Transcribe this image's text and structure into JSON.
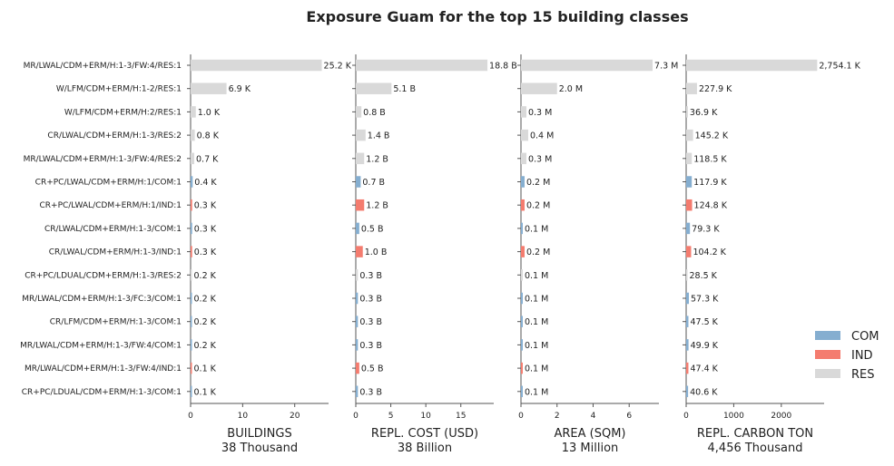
{
  "chart_data": {
    "type": "bar",
    "orientation": "horizontal",
    "title": "Exposure Guam for the top 15 building classes",
    "categories": [
      "MR/LWAL/CDM+ERM/H:1-3/FW:4/RES:1",
      "W/LFM/CDM+ERM/H:1-2/RES:1",
      "W/LFM/CDM+ERM/H:2/RES:1",
      "CR/LWAL/CDM+ERM/H:1-3/RES:2",
      "MR/LWAL/CDM+ERM/H:1-3/FW:4/RES:2",
      "CR+PC/LWAL/CDM+ERM/H:1/COM:1",
      "CR+PC/LWAL/CDM+ERM/H:1/IND:1",
      "CR/LWAL/CDM+ERM/H:1-3/COM:1",
      "CR/LWAL/CDM+ERM/H:1-3/IND:1",
      "CR+PC/LDUAL/CDM+ERM/H:1-3/RES:2",
      "MR/LWAL/CDM+ERM/H:1-3/FC:3/COM:1",
      "CR/LFM/CDM+ERM/H:1-3/COM:1",
      "MR/LWAL/CDM+ERM/H:1-3/FW:4/COM:1",
      "MR/LWAL/CDM+ERM/H:1-3/FW:4/IND:1",
      "CR+PC/LDUAL/CDM+ERM/H:1-3/COM:1"
    ],
    "occupancy": [
      "RES",
      "RES",
      "RES",
      "RES",
      "RES",
      "COM",
      "IND",
      "COM",
      "IND",
      "RES",
      "COM",
      "COM",
      "COM",
      "IND",
      "COM"
    ],
    "colors": {
      "COM": "#85aed0",
      "IND": "#f47c6f",
      "RES": "#d9d9d9"
    },
    "legend": {
      "position": "lower-right",
      "entries": [
        "COM",
        "IND",
        "RES"
      ]
    },
    "panels": [
      {
        "xlabel": "BUILDINGS",
        "subtitle": "38 Thousand",
        "xlim": [
          0,
          26.5
        ],
        "xticks": [
          0,
          10,
          20
        ],
        "xtick_labels": [
          "0",
          "10",
          "20"
        ],
        "values": [
          25.2,
          6.9,
          1.0,
          0.8,
          0.7,
          0.4,
          0.3,
          0.3,
          0.3,
          0.2,
          0.2,
          0.2,
          0.2,
          0.1,
          0.1
        ],
        "value_labels": [
          "25.2 K",
          "6.9 K",
          "1.0 K",
          "0.8 K",
          "0.7 K",
          "0.4 K",
          "0.3 K",
          "0.3 K",
          "0.3 K",
          "0.2 K",
          "0.2 K",
          "0.2 K",
          "0.2 K",
          "0.1 K",
          "0.1 K"
        ]
      },
      {
        "xlabel": "REPL. COST (USD)",
        "subtitle": "38 Billion",
        "xlim": [
          0,
          19.7
        ],
        "xticks": [
          0,
          5,
          10,
          15
        ],
        "xtick_labels": [
          "0",
          "5",
          "10",
          "15"
        ],
        "values": [
          18.8,
          5.1,
          0.8,
          1.4,
          1.2,
          0.7,
          1.2,
          0.5,
          1.0,
          0.3,
          0.3,
          0.3,
          0.3,
          0.5,
          0.3
        ],
        "value_labels": [
          "18.8 B",
          "5.1 B",
          "0.8 B",
          "1.4 B",
          "1.2 B",
          "0.7 B",
          "1.2 B",
          "0.5 B",
          "1.0 B",
          "0.3 B",
          "0.3 B",
          "0.3 B",
          "0.3 B",
          "0.5 B",
          "0.3 B"
        ]
      },
      {
        "xlabel": "AREA (SQM)",
        "subtitle": "13 Million",
        "xlim": [
          0,
          7.65
        ],
        "xticks": [
          0,
          2,
          4,
          6
        ],
        "xtick_labels": [
          "0",
          "2",
          "4",
          "6"
        ],
        "values": [
          7.3,
          2.0,
          0.3,
          0.4,
          0.3,
          0.2,
          0.2,
          0.1,
          0.2,
          0.1,
          0.1,
          0.1,
          0.1,
          0.1,
          0.1
        ],
        "value_labels": [
          "7.3 M",
          "2.0 M",
          "0.3 M",
          "0.4 M",
          "0.3 M",
          "0.2 M",
          "0.2 M",
          "0.1 M",
          "0.2 M",
          "0.1 M",
          "0.1 M",
          "0.1 M",
          "0.1 M",
          "0.1 M",
          "0.1 M"
        ]
      },
      {
        "xlabel": "REPL. CARBON TON",
        "subtitle": "4,456 Thousand",
        "xlim": [
          0,
          2900
        ],
        "xticks": [
          0,
          1000,
          2000
        ],
        "xtick_labels": [
          "0",
          "1000",
          "2000"
        ],
        "values": [
          2754.1,
          227.9,
          36.9,
          145.2,
          118.5,
          117.9,
          124.8,
          79.3,
          104.2,
          28.5,
          57.3,
          47.5,
          49.9,
          47.4,
          40.6
        ],
        "value_labels": [
          "2,754.1 K",
          "227.9 K",
          "36.9 K",
          "145.2 K",
          "118.5 K",
          "117.9 K",
          "124.8 K",
          "79.3 K",
          "104.2 K",
          "28.5 K",
          "57.3 K",
          "47.5 K",
          "49.9 K",
          "47.4 K",
          "40.6 K"
        ]
      }
    ]
  }
}
